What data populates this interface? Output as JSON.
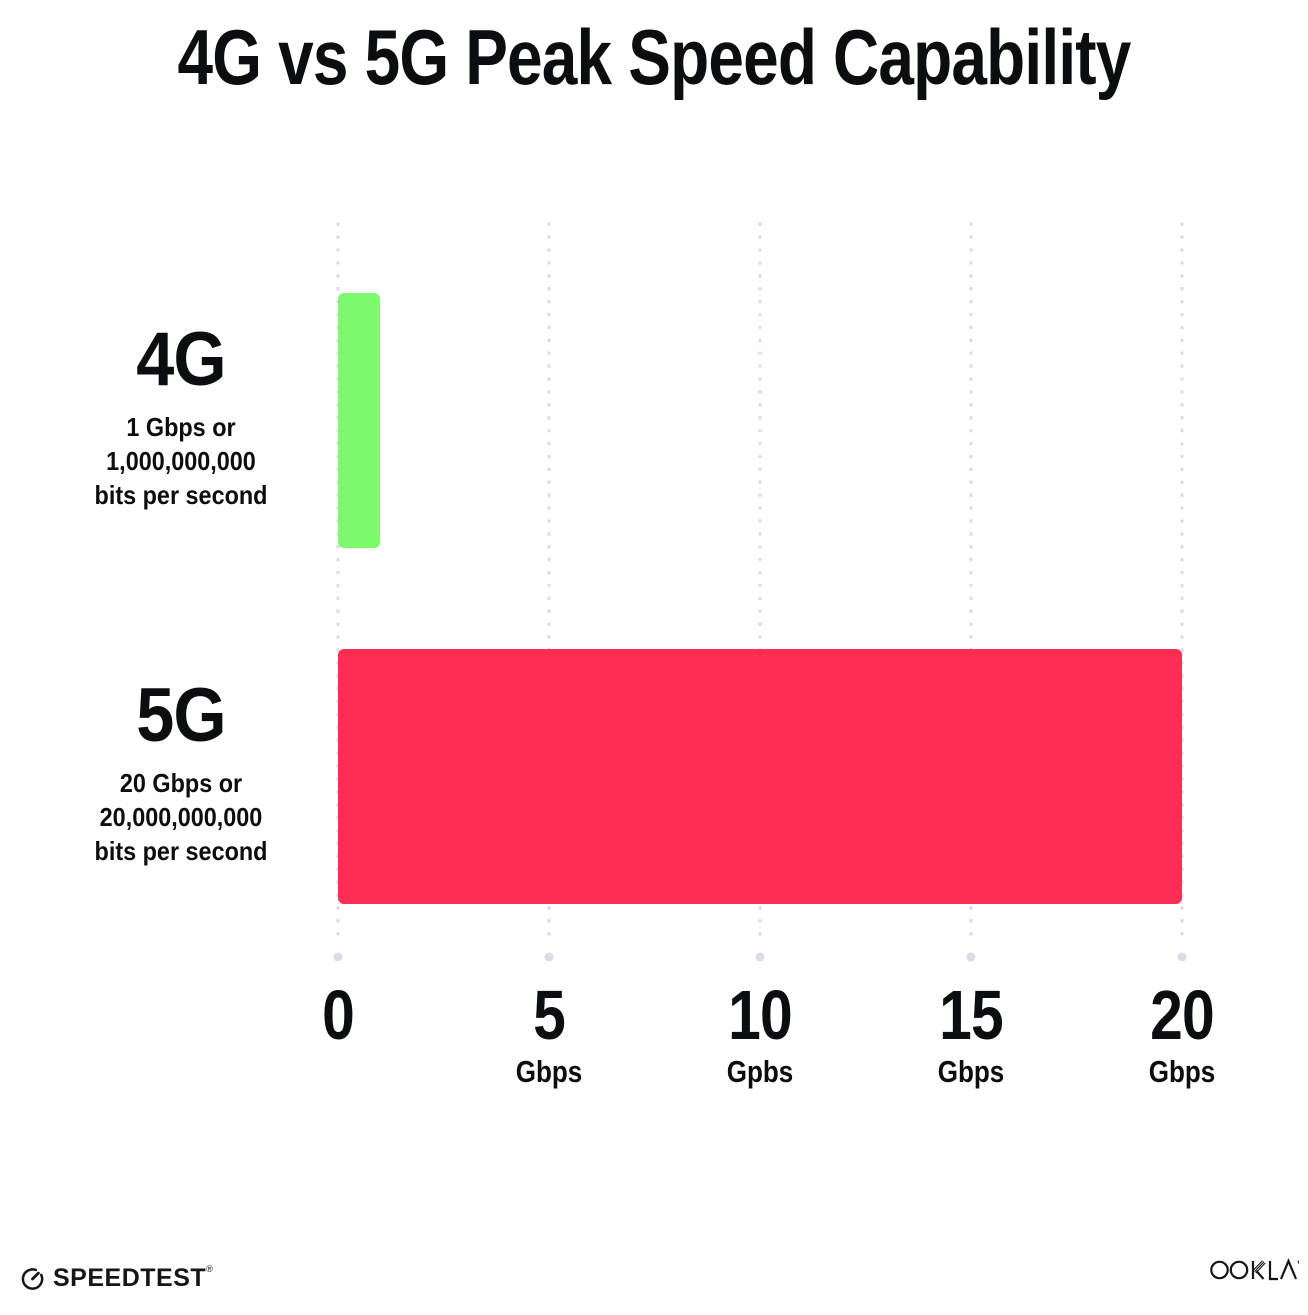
{
  "title": "4G vs 5G Peak Speed Capability",
  "chart_data": {
    "type": "bar",
    "orientation": "horizontal",
    "title": "4G vs 5G Peak Speed Capability",
    "categories": [
      "4G",
      "5G"
    ],
    "values": [
      1,
      20
    ],
    "value_unit": "Gbps",
    "bar_colors": [
      "#7EFA6D",
      "#FE2D55"
    ],
    "category_descriptions": [
      [
        "1 Gbps or",
        "1,000,000,000",
        "bits per second"
      ],
      [
        "20 Gbps or",
        "20,000,000,000",
        "bits per second"
      ]
    ],
    "xlabel": "",
    "ylabel": "",
    "xlim": [
      0,
      20
    ],
    "x_ticks": [
      {
        "value": 0,
        "label": "0",
        "unit": ""
      },
      {
        "value": 5,
        "label": "5",
        "unit": "Gbps"
      },
      {
        "value": 10,
        "label": "10",
        "unit": "Gpbs"
      },
      {
        "value": 15,
        "label": "15",
        "unit": "Gbps"
      },
      {
        "value": 20,
        "label": "20",
        "unit": "Gbps"
      }
    ],
    "grid": "vertical-dotted",
    "gridline_color": "#DBDCE8",
    "legend": "none"
  },
  "footer": {
    "speedtest_label": "SPEEDTEST",
    "speedtest_mark": "®",
    "ookla_label": "OOKLA"
  }
}
